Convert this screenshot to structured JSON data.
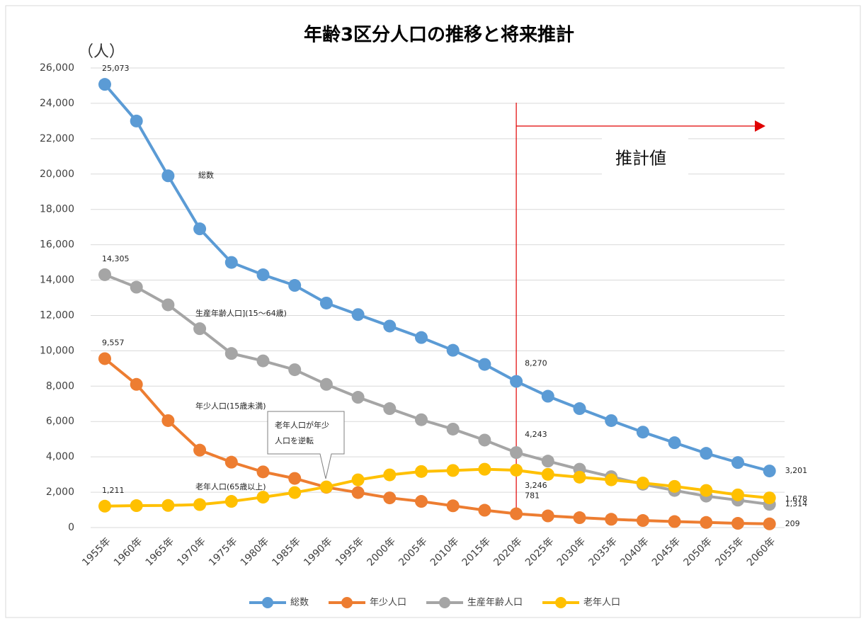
{
  "chart_data": {
    "type": "line",
    "title": "年齢3区分人口の推移と将来推計",
    "y_unit": "（人）",
    "categories": [
      "1955年",
      "1960年",
      "1965年",
      "1970年",
      "1975年",
      "1980年",
      "1985年",
      "1990年",
      "1995年",
      "2000年",
      "2005年",
      "2010年",
      "2015年",
      "2020年",
      "2025年",
      "2030年",
      "2035年",
      "2040年",
      "2045年",
      "2050年",
      "2055年",
      "2060年"
    ],
    "series": [
      {
        "name": "総数",
        "color": "#5b9bd5",
        "values": [
          25073,
          23000,
          19900,
          16900,
          15000,
          14300,
          13700,
          12700,
          12050,
          11400,
          10750,
          10030,
          9230,
          8270,
          7430,
          6730,
          6050,
          5400,
          4800,
          4200,
          3680,
          3201
        ],
        "value_labels": [
          "25,073",
          null,
          null,
          null,
          null,
          null,
          null,
          null,
          null,
          null,
          null,
          null,
          null,
          "8,270",
          null,
          null,
          null,
          null,
          null,
          null,
          null,
          "3,201"
        ]
      },
      {
        "name": "年少人口",
        "color": "#ed7d31",
        "values": [
          9557,
          8100,
          6050,
          4380,
          3700,
          3150,
          2780,
          2280,
          1980,
          1680,
          1480,
          1230,
          980,
          781,
          660,
          560,
          470,
          400,
          340,
          290,
          240,
          209
        ],
        "value_labels": [
          "9,557",
          null,
          null,
          null,
          null,
          null,
          null,
          null,
          null,
          null,
          null,
          null,
          null,
          "781",
          null,
          null,
          null,
          null,
          null,
          null,
          null,
          "209"
        ]
      },
      {
        "name": "生産年齢人口",
        "color": "#a5a5a5",
        "values": [
          14305,
          13600,
          12600,
          11250,
          9850,
          9430,
          8930,
          8100,
          7370,
          6730,
          6100,
          5570,
          4950,
          4243,
          3760,
          3300,
          2880,
          2450,
          2100,
          1780,
          1550,
          1314
        ],
        "value_labels": [
          "14,305",
          null,
          null,
          null,
          null,
          null,
          null,
          null,
          null,
          null,
          null,
          null,
          null,
          "4,243",
          null,
          null,
          null,
          null,
          null,
          null,
          null,
          "1,314"
        ]
      },
      {
        "name": "老年人口",
        "color": "#ffc000",
        "values": [
          1211,
          1240,
          1250,
          1300,
          1480,
          1720,
          1980,
          2300,
          2700,
          2980,
          3170,
          3230,
          3300,
          3246,
          3010,
          2850,
          2700,
          2520,
          2330,
          2100,
          1850,
          1678
        ],
        "value_labels": [
          "1,211",
          null,
          null,
          null,
          null,
          null,
          null,
          null,
          null,
          null,
          null,
          null,
          null,
          "3,246",
          null,
          null,
          null,
          null,
          null,
          null,
          null,
          "1,678"
        ]
      }
    ],
    "ylim": [
      0,
      26000
    ],
    "yticks": [
      0,
      {
        "value": 2000,
        "label": "2,000"
      },
      {
        "value": 4000,
        "label": "4,000"
      },
      {
        "value": 6000,
        "label": "6,000"
      },
      {
        "value": 8000,
        "label": "8,000"
      },
      {
        "value": 10000,
        "label": "10,000"
      },
      {
        "value": 12000,
        "label": "12,000"
      },
      {
        "value": 14000,
        "label": "14,000"
      },
      {
        "value": 16000,
        "label": "16,000"
      },
      {
        "value": 18000,
        "label": "18,000"
      },
      {
        "value": 20000,
        "label": "20,000"
      },
      {
        "value": 22000,
        "label": "22,000"
      },
      {
        "value": 24000,
        "label": "24,000"
      },
      {
        "value": 26000,
        "label": "26,000"
      }
    ],
    "grid": true,
    "legend": "bottom",
    "annotations": [
      "総数",
      "生産年齢人口](15～64歳)",
      "年少人口(15歳未満)",
      "老年人口(65歳以上)"
    ],
    "callout": [
      "老年人口が年少",
      "人口を逆転"
    ],
    "projection_label": "推計値"
  }
}
